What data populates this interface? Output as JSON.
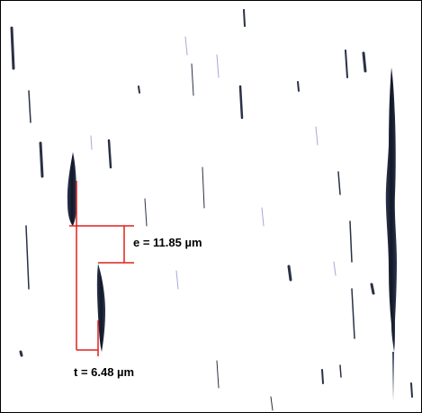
{
  "measurements": {
    "e_label": "e = 11.85 µm",
    "t_label": "t = 6.48 µm"
  },
  "colors": {
    "measure_line": "#e0201b",
    "inclusion": "#1b2436",
    "background": "#ffffff",
    "faint_streak": "#6b6fb8"
  }
}
